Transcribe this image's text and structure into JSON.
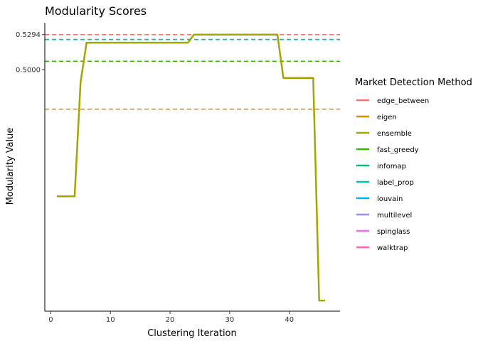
{
  "chart_data": {
    "type": "line",
    "title": "Modularity Scores",
    "xlabel": "Clustering Iteration",
    "ylabel": "Modularity Value",
    "xlim": [
      -1,
      48.5
    ],
    "ylim": [
      0.297,
      0.5394
    ],
    "x_ticks": [
      0,
      10,
      20,
      30,
      40
    ],
    "y_ticks": [
      {
        "value": 0.5,
        "label": "0.5000"
      },
      {
        "value": 0.5294,
        "label": "0.5294"
      }
    ],
    "grid": false,
    "legend": {
      "title": "Market Detection Method",
      "placement": "right",
      "entries": [
        {
          "name": "edge_between",
          "color": "#F8766D"
        },
        {
          "name": "eigen",
          "color": "#D89000"
        },
        {
          "name": "ensemble",
          "color": "#A3A500"
        },
        {
          "name": "fast_greedy",
          "color": "#39B600"
        },
        {
          "name": "infomap",
          "color": "#00BF7D"
        },
        {
          "name": "label_prop",
          "color": "#00BFC4"
        },
        {
          "name": "louvain",
          "color": "#00B0F6"
        },
        {
          "name": "multilevel",
          "color": "#9590FF"
        },
        {
          "name": "spinglass",
          "color": "#E76BF3"
        },
        {
          "name": "walktrap",
          "color": "#FF62BC"
        }
      ]
    },
    "reference_lines": [
      {
        "series": "multilevel",
        "y": 0.5294,
        "color": "#9590FF"
      },
      {
        "series": "spinglass",
        "y": 0.5294,
        "color": "#E76BF3"
      },
      {
        "series": "walktrap",
        "y": 0.5294,
        "color": "#FF62BC"
      },
      {
        "series": "louvain",
        "y": 0.5294,
        "color": "#00B0F6"
      },
      {
        "series": "edge_between",
        "y": 0.5294,
        "color": "#F8766D"
      },
      {
        "series": "infomap",
        "y": 0.5253,
        "color": "#00BF7D"
      },
      {
        "series": "label_prop",
        "y": 0.5253,
        "color": "#00BFC4"
      },
      {
        "series": "fast_greedy",
        "y": 0.507,
        "color": "#39B600"
      },
      {
        "series": "eigen",
        "y": 0.4668,
        "color": "#D89000"
      }
    ],
    "series": [
      {
        "name": "ensemble",
        "color": "#A3A500",
        "x": [
          1,
          2,
          3,
          4,
          5,
          6,
          7,
          8,
          9,
          10,
          11,
          12,
          13,
          14,
          15,
          16,
          17,
          18,
          19,
          20,
          21,
          22,
          23,
          24,
          25,
          26,
          27,
          28,
          29,
          30,
          31,
          32,
          33,
          34,
          35,
          36,
          37,
          38,
          39,
          40,
          41,
          42,
          43,
          44,
          45,
          46
        ],
        "y": [
          0.3935,
          0.3935,
          0.3935,
          0.3935,
          0.4896,
          0.5226,
          0.5226,
          0.5226,
          0.5226,
          0.5226,
          0.5226,
          0.5226,
          0.5226,
          0.5226,
          0.5226,
          0.5226,
          0.5226,
          0.5226,
          0.5226,
          0.5226,
          0.5226,
          0.5226,
          0.5226,
          0.5294,
          0.5294,
          0.5294,
          0.5294,
          0.5294,
          0.5294,
          0.5294,
          0.5294,
          0.5294,
          0.5294,
          0.5294,
          0.5294,
          0.5294,
          0.5294,
          0.5294,
          0.493,
          0.493,
          0.493,
          0.493,
          0.493,
          0.493,
          0.3059,
          0.3059
        ]
      }
    ]
  }
}
